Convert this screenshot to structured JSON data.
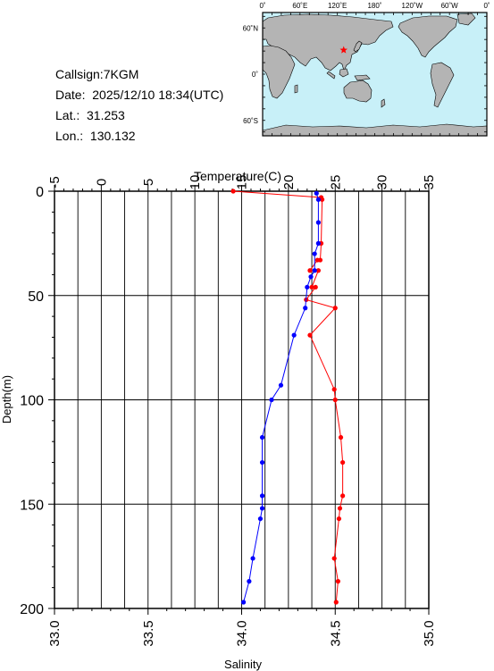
{
  "info": {
    "callsign": "Callsign:7KGM",
    "date": "Date:  2025/12/10 18:34(UTC)",
    "lat": "Lat.:  31.253",
    "lon": "Lon.:  130.132"
  },
  "map": {
    "lon_labels": [
      "0˚",
      "60˚E",
      "120˚E",
      "180˚",
      "120˚W",
      "60˚W",
      "0˚"
    ],
    "lat_labels": [
      "60˚N",
      "0˚",
      "60˚S"
    ],
    "station": {
      "lon": 130.132,
      "lat": 31.253
    },
    "colors": {
      "ocean": "#c8f0f8",
      "land": "#b4b4b4",
      "marker": "#ff0000"
    }
  },
  "chart_data": {
    "type": "line",
    "temperature_axis": {
      "label": "Temperature(C)",
      "range": [
        -5,
        35
      ],
      "ticks": [
        -5,
        0,
        5,
        10,
        15,
        20,
        25,
        30,
        35
      ]
    },
    "salinity_axis": {
      "label": "Salinity",
      "range": [
        33.0,
        35.0
      ],
      "ticks": [
        "33.0",
        "33.5",
        "34.0",
        "34.5",
        "35.0"
      ]
    },
    "depth_axis": {
      "label": "Depth(m)",
      "range": [
        0,
        200
      ],
      "ticks": [
        0,
        50,
        100,
        150,
        200
      ],
      "inverted": true
    },
    "grid": true,
    "series": [
      {
        "color": "#ff0000",
        "variable": "temperature",
        "points": [
          [
            14.1,
            0
          ],
          [
            23.5,
            3
          ],
          [
            23.6,
            4
          ],
          [
            23.5,
            25
          ],
          [
            23.4,
            33
          ],
          [
            23.1,
            33
          ],
          [
            22.3,
            38
          ],
          [
            23.2,
            38
          ],
          [
            22.5,
            46
          ],
          [
            22.9,
            46
          ],
          [
            21.9,
            52
          ],
          [
            25.0,
            56
          ],
          [
            22.3,
            69
          ],
          [
            24.9,
            95
          ],
          [
            25.0,
            100
          ],
          [
            25.6,
            118
          ],
          [
            25.8,
            130
          ],
          [
            25.8,
            146
          ],
          [
            25.5,
            152
          ],
          [
            25.4,
            157
          ],
          [
            24.9,
            176
          ],
          [
            25.3,
            187
          ],
          [
            25.1,
            197
          ]
        ]
      },
      {
        "color": "#0000ff",
        "variable": "salinity",
        "points": [
          [
            34.4,
            1
          ],
          [
            34.41,
            4
          ],
          [
            34.41,
            15
          ],
          [
            34.41,
            25
          ],
          [
            34.39,
            30
          ],
          [
            34.39,
            38
          ],
          [
            34.37,
            41
          ],
          [
            34.35,
            46
          ],
          [
            34.34,
            56
          ],
          [
            34.28,
            69
          ],
          [
            34.21,
            93
          ],
          [
            34.16,
            100
          ],
          [
            34.11,
            118
          ],
          [
            34.11,
            130
          ],
          [
            34.11,
            146
          ],
          [
            34.11,
            152
          ],
          [
            34.1,
            157
          ],
          [
            34.06,
            176
          ],
          [
            34.04,
            187
          ],
          [
            34.01,
            197
          ]
        ]
      }
    ]
  }
}
